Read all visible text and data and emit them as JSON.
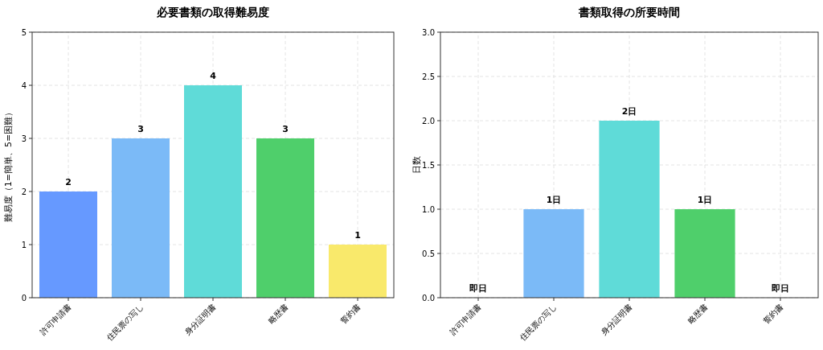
{
  "chart_data": [
    {
      "type": "bar",
      "title": "必要書類の取得難易度",
      "ylabel": "難易度（1=簡単、5=困難）",
      "categories": [
        "許可申請書",
        "住民票の写し",
        "身分証明書",
        "略歴書",
        "誓約書"
      ],
      "values": [
        2,
        3,
        4,
        3,
        1
      ],
      "colors": [
        "#6699ff",
        "#7bbaf7",
        "#5fdbd8",
        "#4fcf6b",
        "#f9e96b"
      ],
      "ylim": [
        0,
        5
      ],
      "yticks": [
        0,
        1,
        2,
        3,
        4,
        5
      ],
      "grid": true,
      "data_labels": true
    },
    {
      "type": "bar",
      "title": "書類取得の所要時間",
      "ylabel": "日数",
      "categories": [
        "許可申請書",
        "住民票の写し",
        "身分証明書",
        "略歴書",
        "誓約書"
      ],
      "values": [
        0,
        1,
        2,
        1,
        0
      ],
      "colors": [
        "#6699ff",
        "#7bbaf7",
        "#5fdbd8",
        "#4fcf6b",
        "#f9e96b"
      ],
      "value_labels": [
        "即日",
        "1日",
        "2日",
        "1日",
        "即日"
      ],
      "ylim": [
        0,
        3
      ],
      "yticks": [
        {
          "value": 0,
          "label": "0.0"
        },
        {
          "value": 0.5,
          "label": "0.5"
        },
        {
          "value": 1,
          "label": "1.0"
        },
        {
          "value": 1.5,
          "label": "1.5"
        },
        {
          "value": 2,
          "label": "2.0"
        },
        {
          "value": 2.5,
          "label": "2.5"
        },
        {
          "value": 3,
          "label": "3.0"
        }
      ],
      "grid": true
    }
  ]
}
